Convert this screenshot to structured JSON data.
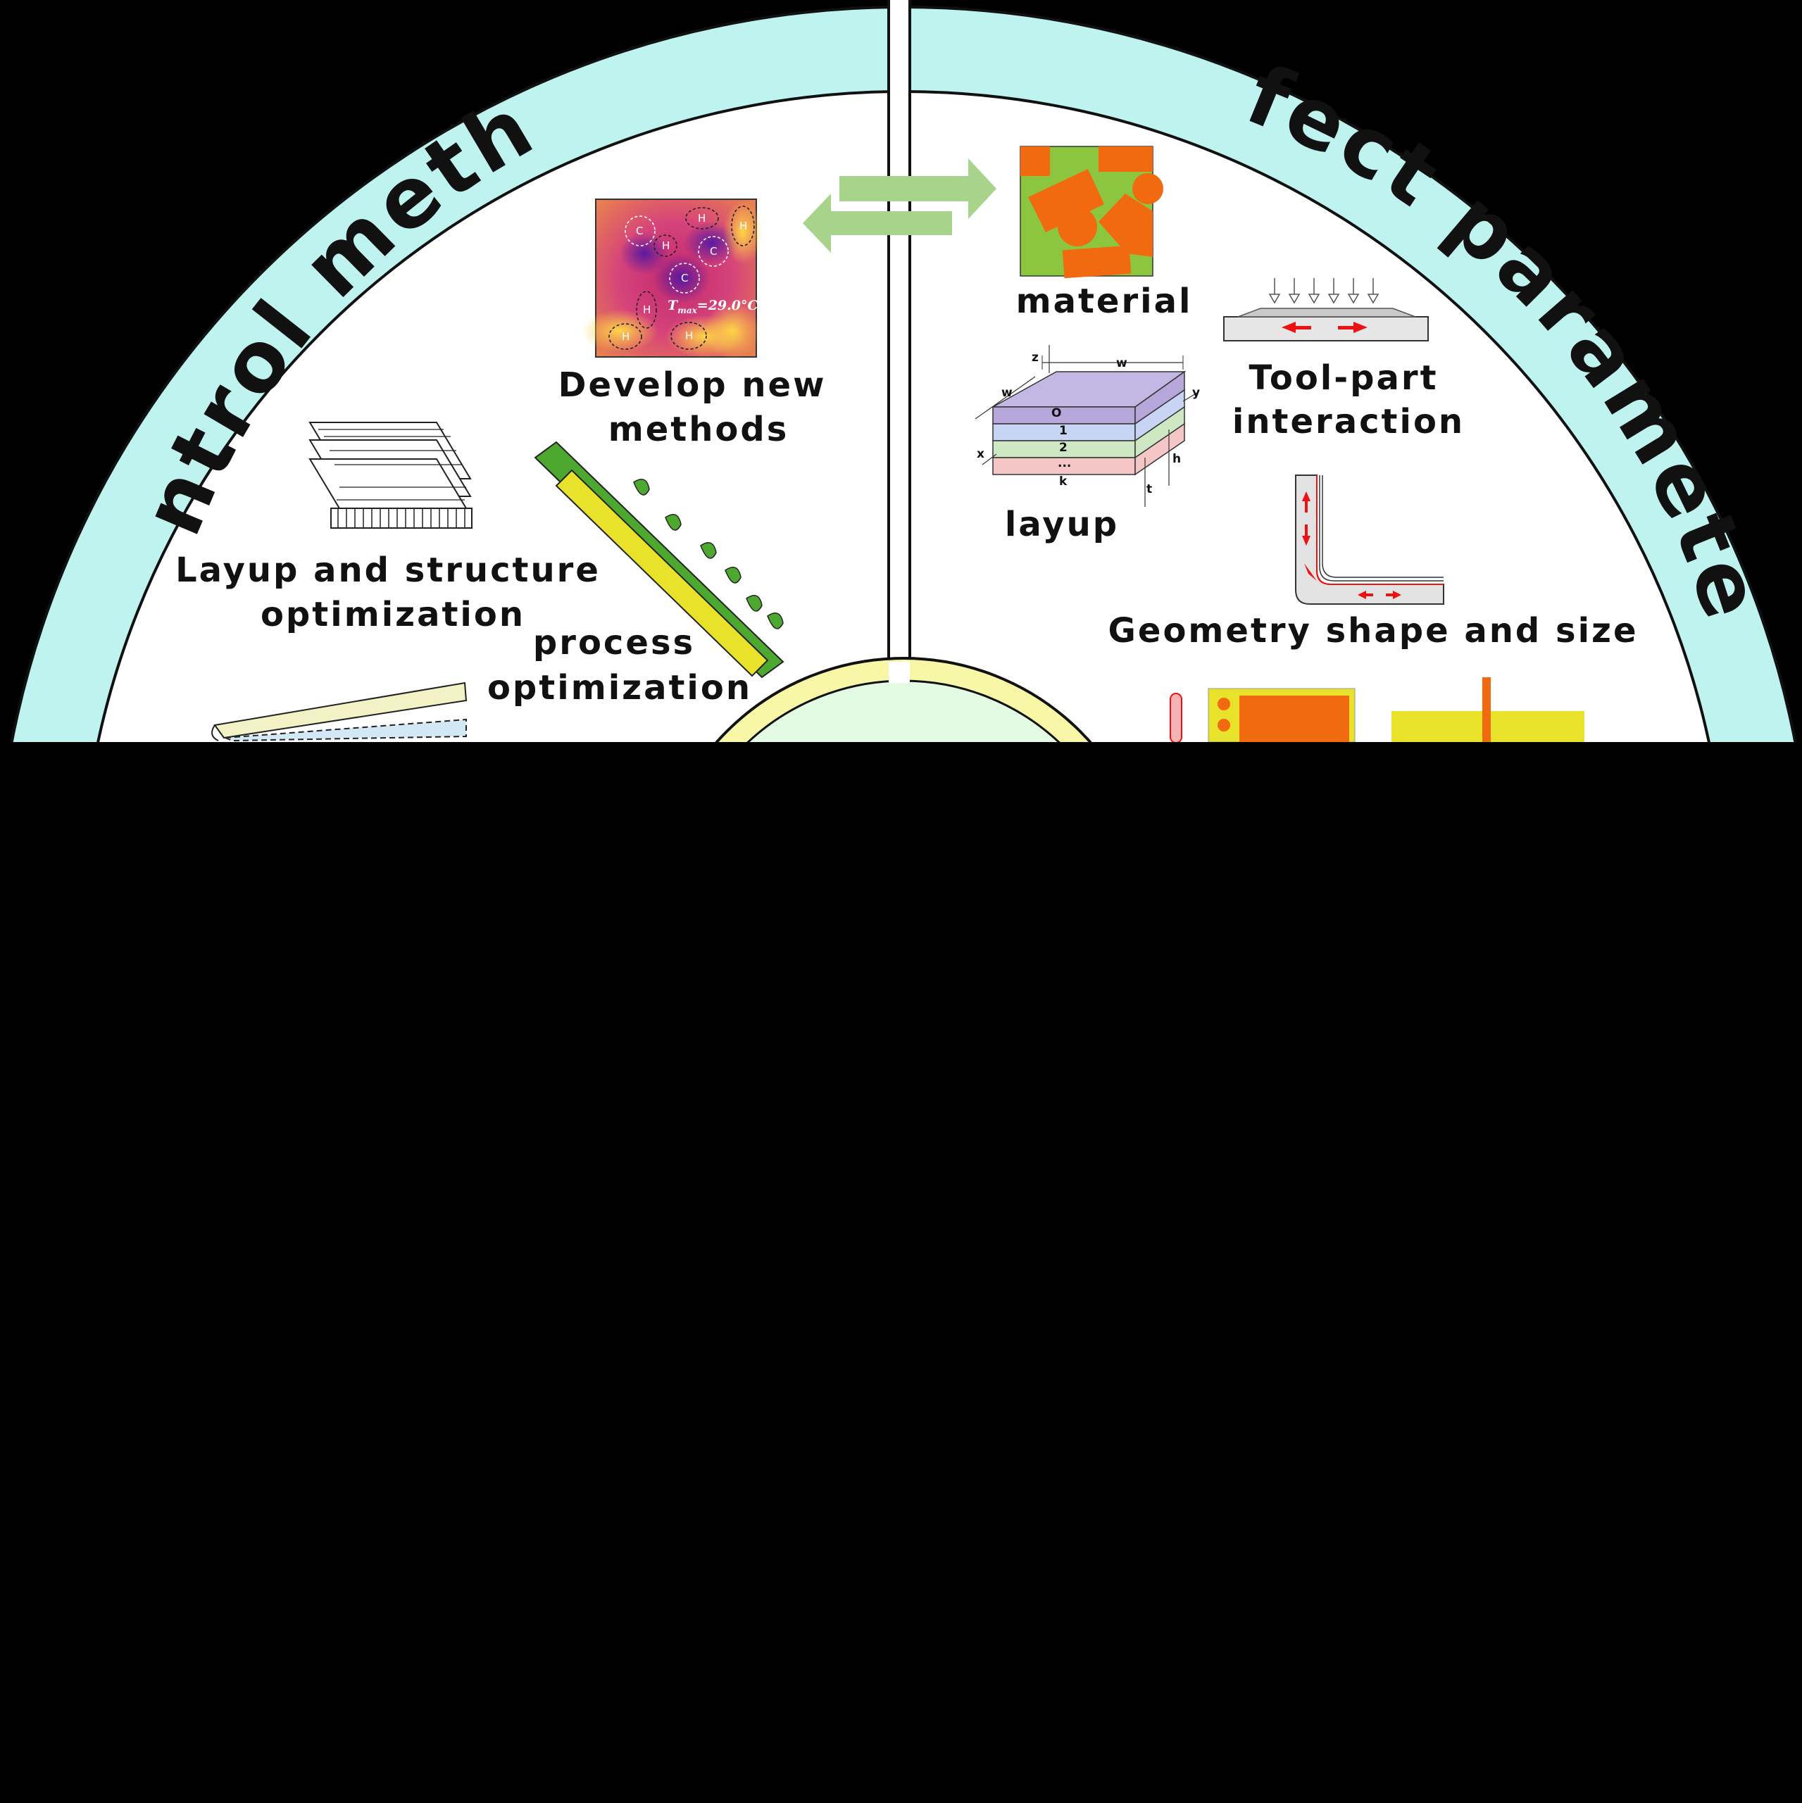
{
  "ring_titles": {
    "left": "Control method",
    "right": "Affect parameters"
  },
  "control_method": {
    "develop_new": {
      "line1": "Develop new",
      "line2": "methods"
    },
    "heatmap": {
      "tmax": "T",
      "tmax_sub": "max",
      "tmax_value": "=29.0°C",
      "markers": [
        "C",
        "H",
        "H",
        "H",
        "C",
        "C",
        "H",
        "H",
        "H"
      ]
    },
    "layup_structure": {
      "line1": "Layup and structure",
      "line2": "optimization"
    },
    "process": {
      "line1": "process",
      "line2": "optimization"
    }
  },
  "affect_parameters": {
    "material": "material",
    "tool_part": {
      "line1": "Tool-part",
      "line2": "interaction"
    },
    "layup": {
      "label": "layup",
      "layers": [
        "O",
        "1",
        "2",
        "...",
        "k"
      ],
      "dims": {
        "w": "w",
        "z": "z",
        "y": "y",
        "x": "x",
        "h": "h",
        "t": "t"
      }
    },
    "geometry": "Geometry shape and size"
  },
  "colors": {
    "ring": "#bff3f0",
    "inner_bg": "#ffffff",
    "arrow": "#a8d38a",
    "material_bg": "#8cc63f",
    "material_shapes": "#f26a0f",
    "center_fill": "#e3fbe3",
    "center_stroke": "#e8e000"
  }
}
